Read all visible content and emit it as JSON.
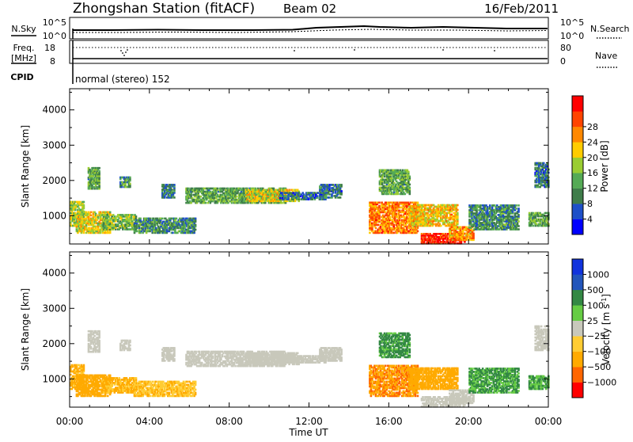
{
  "header": {
    "station_title": "Zhongshan Station (fitACF)",
    "beam": "Beam 02",
    "date": "16/Feb/2011"
  },
  "noise_strip": {
    "left_label": "N.Sky",
    "right_label": "N.Search",
    "left_ticks": [
      "10^5",
      "10^0"
    ],
    "right_ticks": [
      "10^5",
      "10^0"
    ]
  },
  "freq_strip": {
    "left_label": "Freq.",
    "left_unit": "[MHz]",
    "right_label": "Nave",
    "left_ticks": [
      "18",
      "8"
    ],
    "right_ticks": [
      "80",
      "0"
    ]
  },
  "cpid": {
    "label": "CPID",
    "program": "normal (stereo) 152"
  },
  "x_axis": {
    "label": "Time UT",
    "tick_labels": [
      "00:00",
      "04:00",
      "08:00",
      "12:00",
      "16:00",
      "20:00",
      "00:00"
    ],
    "range_hours": [
      0,
      24
    ]
  },
  "colors": {
    "power_scale": [
      "#0000ff",
      "#1e50c8",
      "#3f7d4a",
      "#55aa55",
      "#9acd32",
      "#ffcc00",
      "#ff8800",
      "#ff4400",
      "#ff0000"
    ],
    "velocity_scale": [
      "#ff0000",
      "#ff6600",
      "#ffaa00",
      "#ffcc33",
      "#c8c8bb",
      "#66cc44",
      "#338844",
      "#2255bb",
      "#1133dd"
    ],
    "velocity_ground_scatter": "#c8c8bb"
  },
  "chart_data": [
    {
      "type": "heatmap",
      "name": "power",
      "ylabel": "Slant Range [km]",
      "ylim": [
        200,
        4600
      ],
      "yticks": [
        1000,
        2000,
        3000,
        4000
      ],
      "xlim": [
        0,
        24
      ],
      "colorbar": {
        "label": "Power [dB]",
        "range": [
          0,
          32
        ],
        "ticks": [
          4,
          8,
          12,
          16,
          20,
          24,
          28
        ]
      },
      "regions": [
        {
          "t": [
            0.0,
            0.7
          ],
          "r": [
            700,
            1400
          ],
          "v": 16
        },
        {
          "t": [
            0.3,
            2.0
          ],
          "r": [
            500,
            1100
          ],
          "v": 18
        },
        {
          "t": [
            1.6,
            3.3
          ],
          "r": [
            600,
            1050
          ],
          "v": 14
        },
        {
          "t": [
            3.2,
            6.3
          ],
          "r": [
            500,
            950
          ],
          "v": 10
        },
        {
          "t": [
            0.9,
            1.5
          ],
          "r": [
            1750,
            2350
          ],
          "v": 12
        },
        {
          "t": [
            2.5,
            3.0
          ],
          "r": [
            1800,
            2100
          ],
          "v": 10
        },
        {
          "t": [
            4.6,
            5.2
          ],
          "r": [
            1500,
            1900
          ],
          "v": 9
        },
        {
          "t": [
            5.8,
            10.8
          ],
          "r": [
            1350,
            1800
          ],
          "v": 12
        },
        {
          "t": [
            8.8,
            11.5
          ],
          "r": [
            1400,
            1750
          ],
          "v": 18
        },
        {
          "t": [
            10.5,
            12.8
          ],
          "r": [
            1450,
            1650
          ],
          "v": 8
        },
        {
          "t": [
            12.5,
            13.6
          ],
          "r": [
            1500,
            1900
          ],
          "v": 8
        },
        {
          "t": [
            15.0,
            17.4
          ],
          "r": [
            500,
            1400
          ],
          "v": 24
        },
        {
          "t": [
            15.5,
            17.0
          ],
          "r": [
            1600,
            2300
          ],
          "v": 12
        },
        {
          "t": [
            17.0,
            19.4
          ],
          "r": [
            700,
            1300
          ],
          "v": 20
        },
        {
          "t": [
            17.6,
            19.8
          ],
          "r": [
            200,
            500
          ],
          "v": 29
        },
        {
          "t": [
            19.0,
            20.2
          ],
          "r": [
            300,
            700
          ],
          "v": 22
        },
        {
          "t": [
            20.0,
            22.5
          ],
          "r": [
            600,
            1300
          ],
          "v": 10
        },
        {
          "t": [
            23.0,
            24.0
          ],
          "r": [
            700,
            1100
          ],
          "v": 12
        },
        {
          "t": [
            23.3,
            24.0
          ],
          "r": [
            1800,
            2500
          ],
          "v": 8
        }
      ]
    },
    {
      "type": "heatmap",
      "name": "velocity",
      "ylabel": "Slant Range [km]",
      "ylim": [
        200,
        4600
      ],
      "yticks": [
        1000,
        2000,
        3000,
        4000
      ],
      "xlim": [
        0,
        24
      ],
      "colorbar": {
        "label": "Velocity [m s^-1]",
        "range": [
          -1500,
          1500
        ],
        "ticks": [
          -1000,
          -500,
          -100,
          -25,
          25,
          100,
          500,
          1000
        ]
      },
      "regions": [
        {
          "t": [
            0.0,
            0.7
          ],
          "r": [
            700,
            1400
          ],
          "v": -150
        },
        {
          "t": [
            0.3,
            2.0
          ],
          "r": [
            500,
            1100
          ],
          "v": -200
        },
        {
          "t": [
            1.6,
            3.3
          ],
          "r": [
            600,
            1050
          ],
          "v": -120
        },
        {
          "t": [
            3.2,
            6.3
          ],
          "r": [
            500,
            950
          ],
          "v": -90
        },
        {
          "t": [
            0.9,
            1.5
          ],
          "r": [
            1750,
            2350
          ],
          "v": 0
        },
        {
          "t": [
            2.5,
            3.0
          ],
          "r": [
            1800,
            2100
          ],
          "v": 0
        },
        {
          "t": [
            4.6,
            5.2
          ],
          "r": [
            1500,
            1900
          ],
          "v": 0
        },
        {
          "t": [
            5.8,
            10.8
          ],
          "r": [
            1350,
            1800
          ],
          "v": 0
        },
        {
          "t": [
            8.8,
            11.5
          ],
          "r": [
            1400,
            1750
          ],
          "v": 0
        },
        {
          "t": [
            10.5,
            12.8
          ],
          "r": [
            1450,
            1650
          ],
          "v": 0
        },
        {
          "t": [
            12.5,
            13.6
          ],
          "r": [
            1500,
            1900
          ],
          "v": 0
        },
        {
          "t": [
            15.0,
            17.4
          ],
          "r": [
            500,
            1400
          ],
          "v": -450
        },
        {
          "t": [
            15.5,
            17.0
          ],
          "r": [
            1600,
            2300
          ],
          "v": 150
        },
        {
          "t": [
            17.0,
            19.4
          ],
          "r": [
            700,
            1300
          ],
          "v": -300
        },
        {
          "t": [
            17.6,
            19.8
          ],
          "r": [
            200,
            500
          ],
          "v": 0
        },
        {
          "t": [
            19.0,
            20.2
          ],
          "r": [
            300,
            700
          ],
          "v": 0
        },
        {
          "t": [
            20.0,
            22.5
          ],
          "r": [
            600,
            1300
          ],
          "v": 110
        },
        {
          "t": [
            23.0,
            24.0
          ],
          "r": [
            700,
            1100
          ],
          "v": 110
        },
        {
          "t": [
            23.3,
            24.0
          ],
          "r": [
            1800,
            2500
          ],
          "v": 0
        }
      ]
    }
  ]
}
